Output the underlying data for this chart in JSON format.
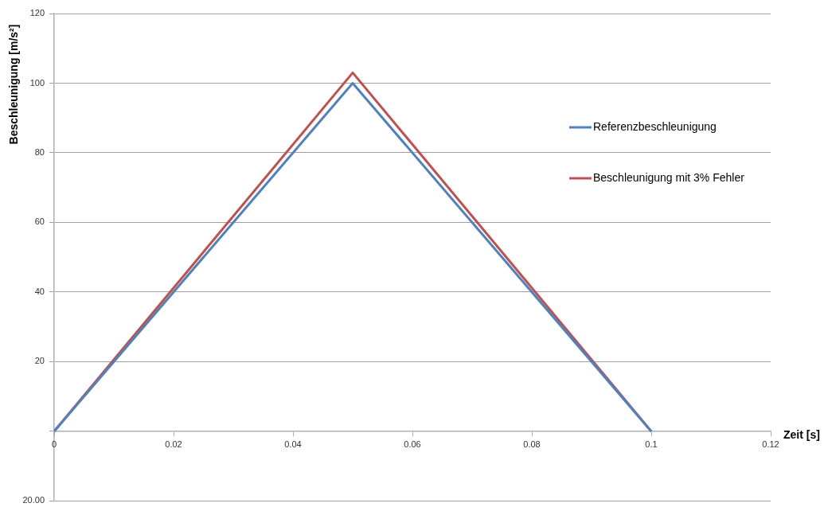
{
  "chart_data": {
    "type": "line",
    "xlabel": "Zeit [s]",
    "ylabel": "Beschleunigung [m/s²]",
    "x": [
      0,
      0.05,
      0.1
    ],
    "series": [
      {
        "name": "Referenzbeschleunigung",
        "color": "#4f81bd",
        "values": [
          0,
          100,
          0
        ]
      },
      {
        "name": "Beschleunigung mit 3% Fehler",
        "color": "#c0504d",
        "values": [
          0,
          103,
          0
        ]
      }
    ],
    "xlim": [
      0,
      0.12
    ],
    "xticks": [
      0,
      0.02,
      0.04,
      0.06,
      0.08,
      0.1,
      0.12
    ],
    "ylim": [
      -20,
      120
    ],
    "yticks": [
      {
        "value": -20,
        "label": "20.00"
      },
      {
        "value": 0,
        "label": null
      },
      20,
      40,
      60,
      80,
      100,
      120
    ],
    "grid": "y",
    "legend": "right",
    "marker": "none",
    "line_style": "solid"
  }
}
